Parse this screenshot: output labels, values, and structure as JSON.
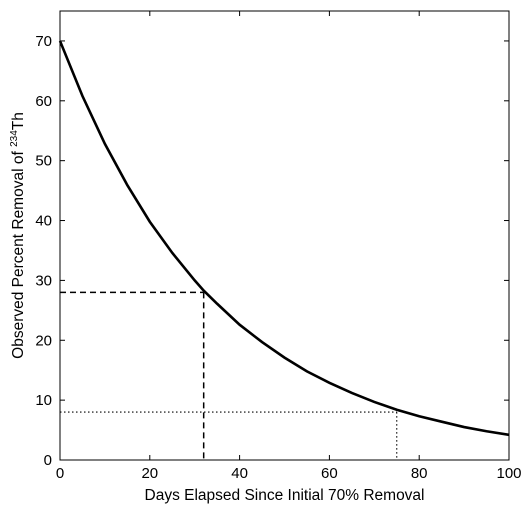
{
  "chart_data": {
    "type": "line",
    "xlabel": "Days Elapsed Since Initial 70% Removal",
    "ylabel_prefix": "Observed Percent Removal of ",
    "ylabel_isotope_mass": "234",
    "ylabel_element": "Th",
    "xlim": [
      0,
      100
    ],
    "ylim": [
      0,
      75
    ],
    "xticks": [
      0,
      20,
      40,
      60,
      80,
      100
    ],
    "yticks": [
      0,
      10,
      20,
      30,
      40,
      50,
      60,
      70
    ],
    "curve": {
      "x": [
        0,
        5,
        10,
        15,
        20,
        25,
        30,
        32,
        35,
        40,
        45,
        50,
        55,
        60,
        65,
        70,
        75,
        80,
        85,
        90,
        95,
        100
      ],
      "y": [
        70.0,
        60.8,
        52.8,
        45.9,
        39.8,
        34.6,
        30.0,
        28.3,
        26.1,
        22.6,
        19.7,
        17.1,
        14.8,
        12.9,
        11.2,
        9.7,
        8.4,
        7.3,
        6.4,
        5.5,
        4.8,
        4.2
      ],
      "color": "#000000",
      "style": "solid"
    },
    "reference_lines": [
      {
        "x": 32,
        "y": 28,
        "style": "dashed"
      },
      {
        "x": 75,
        "y": 8,
        "style": "dotted"
      }
    ],
    "grid": false,
    "legend": "none"
  }
}
